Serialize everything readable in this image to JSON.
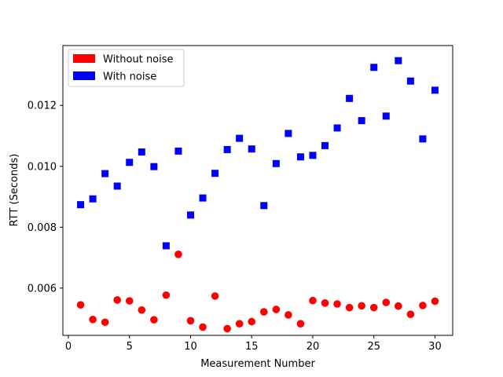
{
  "chart_data": {
    "type": "scatter",
    "xlabel": "Measurement Number",
    "ylabel": "RTT (Seconds)",
    "xlim": [
      -0.45,
      31.45
    ],
    "ylim": [
      0.004448,
      0.013966
    ],
    "xticks": [
      0,
      5,
      10,
      15,
      20,
      25,
      30
    ],
    "xtick_labels": [
      "0",
      "5",
      "10",
      "15",
      "20",
      "25",
      "30"
    ],
    "yticks": [
      0.006,
      0.008,
      0.01,
      0.012
    ],
    "ytick_labels": [
      "0.006",
      "0.008",
      "0.010",
      "0.012"
    ],
    "grid": false,
    "legend_position": "top-left",
    "series": [
      {
        "name": "Without noise",
        "color": "#ff0000",
        "marker": "circle",
        "x": [
          1,
          2,
          3,
          4,
          5,
          6,
          7,
          8,
          9,
          10,
          11,
          12,
          13,
          14,
          15,
          16,
          17,
          18,
          19,
          20,
          21,
          22,
          23,
          24,
          25,
          26,
          27,
          28,
          29,
          30
        ],
        "y": [
          0.00545,
          0.00497,
          0.00488,
          0.00561,
          0.00558,
          0.00528,
          0.00496,
          0.00577,
          0.00711,
          0.00493,
          0.00472,
          0.00574,
          0.00467,
          0.00483,
          0.0049,
          0.00522,
          0.0053,
          0.00512,
          0.00483,
          0.00559,
          0.00551,
          0.00548,
          0.00536,
          0.00542,
          0.00536,
          0.00553,
          0.00541,
          0.00514,
          0.00543,
          0.00557
        ]
      },
      {
        "name": "With noise",
        "color": "#0000ff",
        "marker": "square",
        "x": [
          1,
          2,
          3,
          4,
          5,
          6,
          7,
          8,
          9,
          10,
          11,
          12,
          13,
          14,
          15,
          16,
          17,
          18,
          19,
          20,
          21,
          22,
          23,
          24,
          25,
          26,
          27,
          28,
          29,
          30
        ],
        "y": [
          0.00874,
          0.00893,
          0.00976,
          0.00935,
          0.01013,
          0.01047,
          0.00999,
          0.00739,
          0.0105,
          0.0084,
          0.00896,
          0.00977,
          0.01055,
          0.01092,
          0.01057,
          0.00871,
          0.01009,
          0.01108,
          0.01031,
          0.01036,
          0.01068,
          0.01126,
          0.01223,
          0.0115,
          0.01325,
          0.01165,
          0.01347,
          0.0128,
          0.0109,
          0.0125
        ]
      }
    ]
  }
}
